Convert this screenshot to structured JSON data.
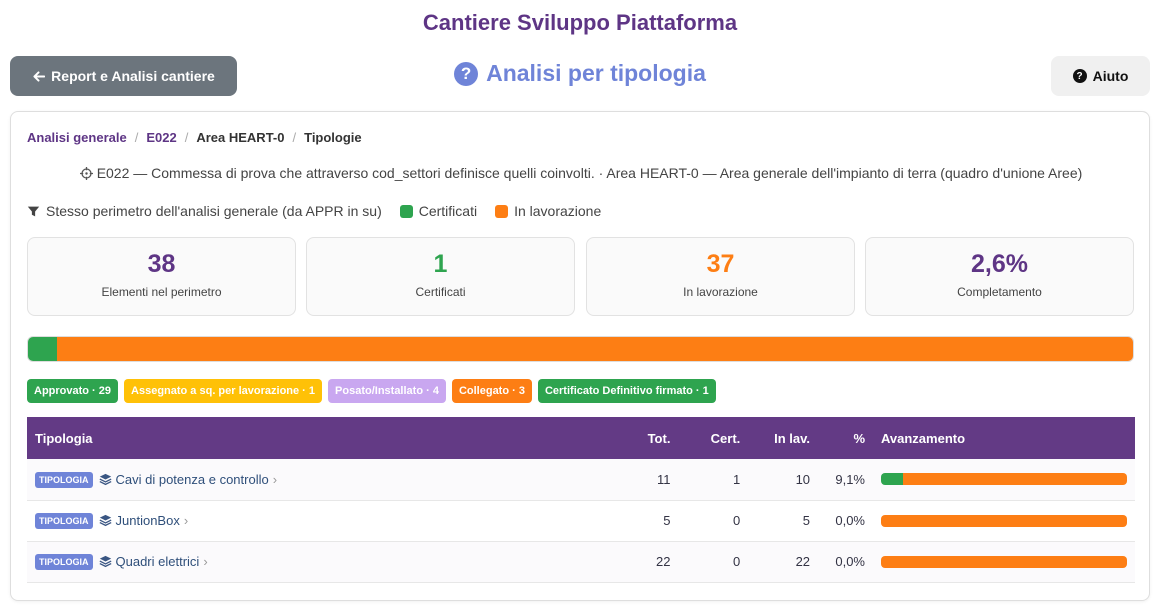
{
  "site_title": "Cantiere Sviluppo Piattaforma",
  "back_button": "Report e Analisi cantiere",
  "page_heading": "Analisi per tipologia",
  "help_button": "Aiuto",
  "breadcrumb": [
    "Analisi generale",
    "E022",
    "Area HEART-0",
    "Tipologie"
  ],
  "description": "E022 — Commessa di prova che attraverso cod_settori definisce quelli coinvolti. · Area HEART-0 — Area generale dell'impianto di terra (quadro d'unione Aree)",
  "legend": {
    "filter_text": "Stesso perimetro dell'analisi generale (da APPR in su)",
    "certified": "Certificati",
    "in_progress": "In lavorazione"
  },
  "colors": {
    "purple": "#5e3585",
    "green": "#2ea44f",
    "orange": "#fd7e14",
    "blue": "#6f84d8"
  },
  "stats": [
    {
      "value": "38",
      "label": "Elementi nel perimetro",
      "color": "#5e3585"
    },
    {
      "value": "1",
      "label": "Certificati",
      "color": "#2ea44f"
    },
    {
      "value": "37",
      "label": "In lavorazione",
      "color": "#fd7e14"
    },
    {
      "value": "2,6%",
      "label": "Completamento",
      "color": "#5e3585"
    }
  ],
  "overall_progress": {
    "certified_fraction": 0.026,
    "in_progress_fraction": 0.974
  },
  "badges": [
    {
      "text": "Approvato · 29",
      "color": "#2ea44f",
      "text_color": "#ffffff"
    },
    {
      "text": "Assegnato a sq. per lavorazione · 1",
      "color": "#ffc107",
      "text_color": "#ffffff"
    },
    {
      "text": "Posato/Installato · 4",
      "color": "#c9a7f0",
      "text_color": "#ffffff"
    },
    {
      "text": "Collegato · 3",
      "color": "#fd7e14",
      "text_color": "#ffffff"
    },
    {
      "text": "Certificato Definitivo firmato · 1",
      "color": "#2ea44f",
      "text_color": "#ffffff"
    }
  ],
  "table": {
    "headers": {
      "tipologia": "Tipologia",
      "tot": "Tot.",
      "cert": "Cert.",
      "inlav": "In lav.",
      "pct": "%",
      "progress": "Avanzamento"
    },
    "tag": "TIPOLOGIA",
    "rows": [
      {
        "name": "Cavi di potenza e controllo",
        "tot": "11",
        "cert": "1",
        "inlav": "10",
        "pct": "9,1%",
        "cert_fraction": 0.091
      },
      {
        "name": "JuntionBox",
        "tot": "5",
        "cert": "0",
        "inlav": "5",
        "pct": "0,0%",
        "cert_fraction": 0
      },
      {
        "name": "Quadri elettrici",
        "tot": "22",
        "cert": "0",
        "inlav": "22",
        "pct": "0,0%",
        "cert_fraction": 0
      }
    ]
  }
}
